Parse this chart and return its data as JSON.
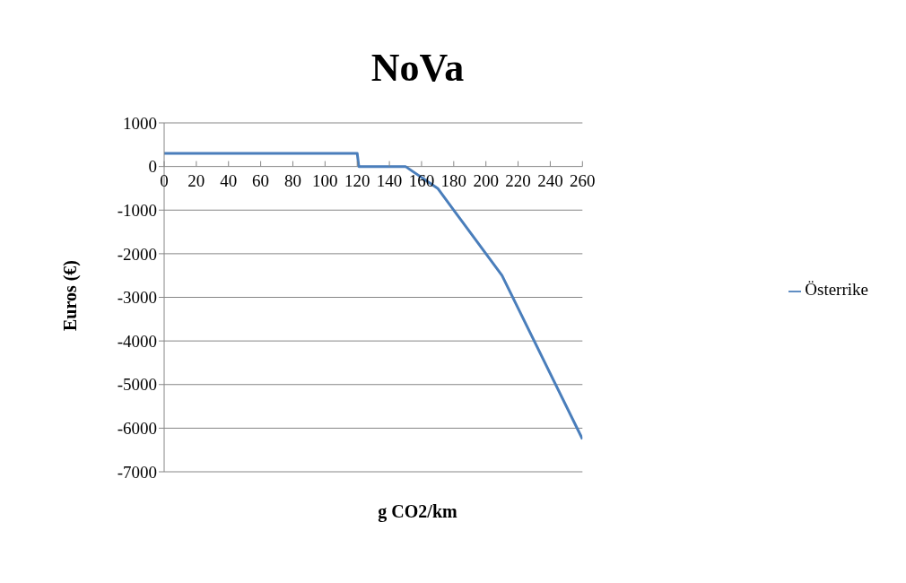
{
  "chart_data": {
    "type": "line",
    "title": "NoVa",
    "xlabel": "g CO2/km",
    "ylabel": "Euros (€)",
    "x": [
      0,
      120,
      121,
      150,
      170,
      210,
      260
    ],
    "series": [
      {
        "name": "Österrike",
        "color": "#4a7ebb",
        "values": [
          300,
          300,
          0,
          0,
          -500,
          -2500,
          -6250
        ]
      }
    ],
    "xlim": [
      0,
      260
    ],
    "xticks": [
      0,
      20,
      40,
      60,
      80,
      100,
      120,
      140,
      160,
      180,
      200,
      220,
      240,
      260
    ],
    "ylim": [
      -7000,
      1000
    ],
    "yticks": [
      -7000,
      -6000,
      -5000,
      -4000,
      -3000,
      -2000,
      -1000,
      0,
      1000
    ],
    "grid": "y",
    "legend": "right",
    "marker": "none",
    "line_style": "solid"
  }
}
